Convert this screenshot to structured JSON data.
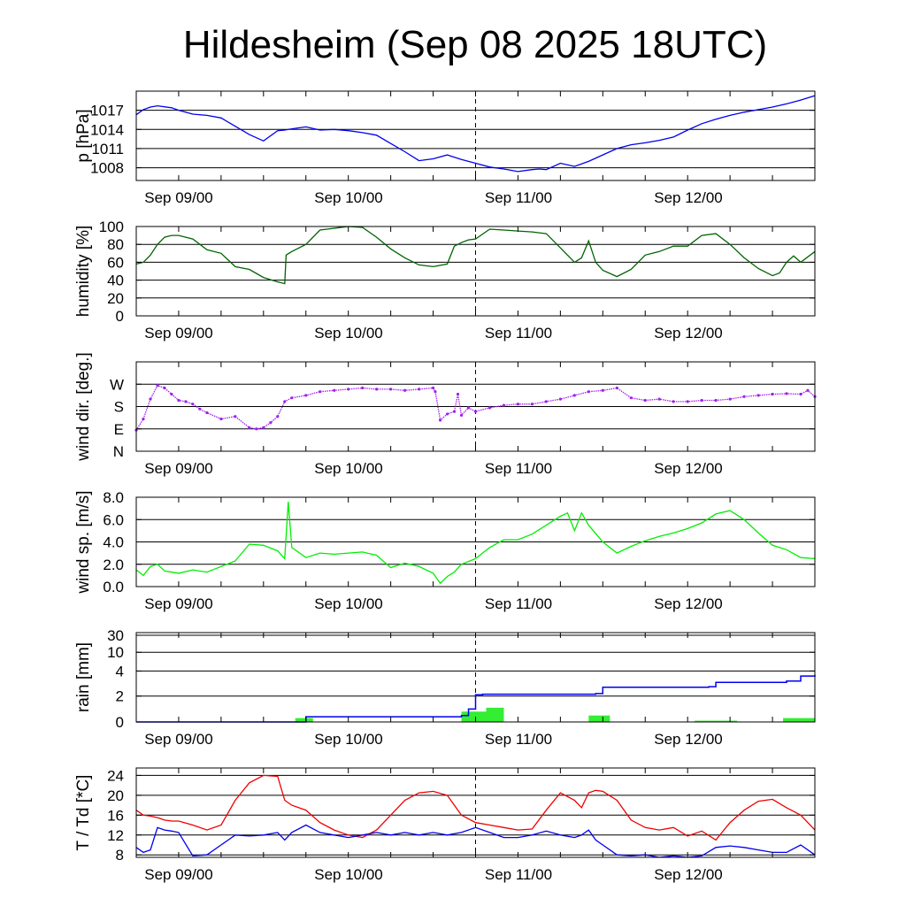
{
  "title": "Hildesheim (Sep 08 2025 18UTC)",
  "chart_data": [
    {
      "type": "line",
      "ylabel": "p [hPa]",
      "y_ticks": [
        "1008",
        "1011",
        "1014",
        "1017"
      ],
      "y_tick_values": [
        1008,
        1011,
        1014,
        1017
      ],
      "ylim": [
        1006,
        1020
      ],
      "x_ticks": [
        "Sep 09/00",
        "Sep 10/00",
        "Sep 11/00",
        "Sep 12/00"
      ],
      "xlim_hours": [
        0,
        96
      ],
      "x_hours": [
        0,
        1,
        2,
        3,
        5,
        6,
        8,
        10,
        12,
        14,
        16,
        18,
        20,
        21,
        22,
        24,
        26,
        28,
        30,
        32,
        34,
        36,
        38,
        40,
        42,
        44,
        46,
        48,
        50,
        52,
        54,
        56,
        57,
        58,
        60,
        62,
        64,
        66,
        68,
        70,
        72,
        74,
        76,
        78,
        80,
        82,
        84,
        86,
        88,
        90,
        92,
        94,
        96
      ],
      "series": [
        {
          "color": "#0000ee",
          "values": [
            1016.3,
            1017.1,
            1017.5,
            1017.7,
            1017.4,
            1017.0,
            1016.4,
            1016.2,
            1015.8,
            1014.5,
            1013.2,
            1012.2,
            1013.8,
            1013.9,
            1014.1,
            1014.4,
            1013.9,
            1014.0,
            1013.8,
            1013.5,
            1013.1,
            1011.8,
            1010.5,
            1009.1,
            1009.4,
            1010.0,
            1009.3,
            1008.7,
            1008.1,
            1007.8,
            1007.4,
            1007.7,
            1007.8,
            1007.7,
            1008.7,
            1008.2,
            1009.0,
            1010.0,
            1011.0,
            1011.6,
            1011.9,
            1012.3,
            1012.8,
            1013.9,
            1014.9,
            1015.6,
            1016.2,
            1016.7,
            1017.1,
            1017.5,
            1018.0,
            1018.6,
            1019.3
          ]
        }
      ]
    },
    {
      "type": "line",
      "ylabel": "humidity [%]",
      "y_ticks": [
        "0",
        "20",
        "40",
        "60",
        "80",
        "100"
      ],
      "y_tick_values": [
        0,
        20,
        40,
        60,
        80,
        100
      ],
      "ylim": [
        0,
        100
      ],
      "x_ticks": [
        "Sep 09/00",
        "Sep 10/00",
        "Sep 11/00",
        "Sep 12/00"
      ],
      "xlim_hours": [
        0,
        96
      ],
      "x_hours": [
        0,
        1,
        2,
        3,
        4,
        5,
        6,
        8,
        10,
        12,
        14,
        16,
        18,
        20,
        21,
        21.2,
        22,
        24,
        26,
        28,
        30,
        32,
        34,
        36,
        38,
        40,
        42,
        44,
        45,
        46,
        47,
        48,
        50,
        52,
        54,
        56,
        58,
        60,
        62,
        63,
        64,
        65,
        66,
        68,
        70,
        72,
        74,
        76,
        78,
        80,
        82,
        84,
        86,
        88,
        90,
        91,
        92,
        93,
        94,
        96
      ],
      "series": [
        {
          "color": "#006400",
          "values": [
            58,
            60,
            68,
            80,
            88,
            90,
            90,
            86,
            74,
            70,
            55,
            52,
            43,
            38,
            36,
            68,
            72,
            80,
            96,
            98,
            100,
            99,
            88,
            75,
            65,
            57,
            55,
            58,
            78,
            82,
            85,
            86,
            97,
            96,
            95,
            94,
            92,
            76,
            60,
            65,
            84,
            60,
            51,
            44,
            52,
            68,
            72,
            78,
            78,
            90,
            92,
            80,
            65,
            53,
            45,
            48,
            60,
            67,
            60,
            72
          ]
        }
      ]
    },
    {
      "type": "scatter",
      "ylabel": "wind dir. [deg.]",
      "y_ticks": [
        "N",
        "E",
        "S",
        "W"
      ],
      "y_tick_values": [
        0,
        90,
        180,
        270
      ],
      "ylim": [
        0,
        360
      ],
      "x_ticks": [
        "Sep 09/00",
        "Sep 10/00",
        "Sep 11/00",
        "Sep 12/00"
      ],
      "xlim_hours": [
        0,
        96
      ],
      "x_hours": [
        0,
        1,
        2,
        3,
        4,
        5,
        6,
        7,
        8,
        9,
        10,
        12,
        14,
        16,
        17,
        18,
        19,
        20,
        21,
        22,
        24,
        26,
        28,
        30,
        32,
        34,
        36,
        38,
        40,
        42,
        42.3,
        43,
        44,
        45,
        45.5,
        46,
        47,
        48,
        50,
        52,
        54,
        56,
        58,
        60,
        62,
        64,
        66,
        68,
        70,
        72,
        74,
        76,
        78,
        80,
        82,
        84,
        86,
        88,
        90,
        92,
        94,
        95,
        96
      ],
      "series": [
        {
          "color": "#a020f0",
          "values": [
            85,
            130,
            210,
            265,
            255,
            230,
            205,
            200,
            190,
            170,
            155,
            130,
            140,
            95,
            90,
            95,
            115,
            140,
            200,
            215,
            225,
            240,
            245,
            250,
            255,
            250,
            250,
            245,
            250,
            255,
            240,
            125,
            150,
            160,
            230,
            145,
            175,
            160,
            175,
            185,
            190,
            190,
            200,
            210,
            225,
            240,
            245,
            255,
            215,
            205,
            210,
            200,
            200,
            205,
            205,
            210,
            220,
            225,
            230,
            232,
            230,
            245,
            220
          ]
        }
      ]
    },
    {
      "type": "line",
      "ylabel": "wind sp. [m/s]",
      "y_ticks": [
        "0.0",
        "2.0",
        "4.0",
        "6.0",
        "8.0"
      ],
      "y_tick_values": [
        0,
        2,
        4,
        6,
        8
      ],
      "ylim": [
        0,
        8
      ],
      "x_ticks": [
        "Sep 09/00",
        "Sep 10/00",
        "Sep 11/00",
        "Sep 12/00"
      ],
      "xlim_hours": [
        0,
        96
      ],
      "x_hours": [
        0,
        1,
        2,
        3,
        4,
        6,
        8,
        10,
        12,
        14,
        16,
        18,
        20,
        21,
        21.5,
        22,
        24,
        26,
        28,
        30,
        32,
        34,
        36,
        38,
        40,
        42,
        43,
        44,
        45,
        46,
        48,
        50,
        52,
        54,
        56,
        58,
        60,
        61,
        62,
        63,
        64,
        66,
        68,
        70,
        72,
        74,
        76,
        78,
        80,
        82,
        84,
        86,
        88,
        90,
        92,
        94,
        96
      ],
      "series": [
        {
          "color": "#00ee00",
          "values": [
            1.5,
            1.0,
            1.8,
            2.0,
            1.4,
            1.2,
            1.5,
            1.3,
            1.8,
            2.3,
            3.8,
            3.7,
            3.2,
            2.5,
            7.6,
            3.5,
            2.6,
            3.0,
            2.9,
            3.0,
            3.1,
            2.8,
            1.7,
            2.1,
            1.8,
            1.2,
            0.3,
            0.9,
            1.3,
            2.0,
            2.5,
            3.5,
            4.2,
            4.2,
            4.7,
            5.5,
            6.3,
            6.6,
            5.0,
            6.6,
            5.5,
            4.0,
            3.0,
            3.6,
            4.1,
            4.5,
            4.8,
            5.2,
            5.7,
            6.5,
            6.8,
            6.0,
            4.8,
            3.7,
            3.3,
            2.6,
            2.5
          ]
        }
      ]
    },
    {
      "type": "bar",
      "ylabel": "rain [mm]",
      "y_ticks": [
        "0",
        "2",
        "4",
        "10",
        "30"
      ],
      "y_tick_values": [
        0,
        2,
        4,
        10,
        30
      ],
      "ylim": [
        0,
        30
      ],
      "x_ticks": [
        "Sep 09/00",
        "Sep 10/00",
        "Sep 11/00",
        "Sep 12/00"
      ],
      "xlim_hours": [
        0,
        96
      ],
      "bars": [
        {
          "start": 22.5,
          "end": 25,
          "value": 0.3
        },
        {
          "start": 46,
          "end": 49.5,
          "value": 0.8
        },
        {
          "start": 49.5,
          "end": 52,
          "value": 1.1
        },
        {
          "start": 64,
          "end": 67,
          "value": 0.5
        },
        {
          "start": 79,
          "end": 85,
          "value": 0.1
        },
        {
          "start": 91.5,
          "end": 96,
          "value": 0.3
        }
      ],
      "series": [
        {
          "color": "#0000ee",
          "x_hours": [
            0,
            22,
            24,
            46,
            47,
            48,
            49,
            65,
            66,
            81,
            82,
            92,
            94,
            96
          ],
          "values": [
            0,
            0,
            0.4,
            0.5,
            1.0,
            2.1,
            2.15,
            2.2,
            2.7,
            2.75,
            3.1,
            3.2,
            3.6,
            3.7
          ]
        }
      ]
    },
    {
      "type": "line",
      "ylabel": "T / Td [*C]",
      "y_ticks": [
        "8",
        "12",
        "16",
        "20",
        "24"
      ],
      "y_tick_values": [
        8,
        12,
        16,
        20,
        24
      ],
      "ylim": [
        7.5,
        25.5
      ],
      "x_ticks": [
        "Sep 09/00",
        "Sep 10/00",
        "Sep 11/00",
        "Sep 12/00"
      ],
      "xlim_hours": [
        0,
        96
      ],
      "x_hours": [
        0,
        1,
        2,
        3,
        4,
        5,
        6,
        8,
        10,
        12,
        14,
        16,
        18,
        20,
        21,
        22,
        24,
        26,
        28,
        30,
        32,
        34,
        36,
        38,
        40,
        42,
        44,
        46,
        48,
        50,
        52,
        54,
        56,
        58,
        60,
        62,
        63,
        64,
        65,
        66,
        68,
        70,
        72,
        74,
        76,
        78,
        80,
        82,
        84,
        86,
        88,
        90,
        92,
        94,
        96
      ],
      "series": [
        {
          "name": "T",
          "color": "#ee0000",
          "values": [
            17.0,
            16.0,
            15.8,
            15.5,
            15.0,
            14.8,
            14.8,
            14.0,
            13.0,
            14.0,
            19.0,
            22.5,
            24.0,
            23.8,
            19.0,
            18.0,
            17.0,
            14.5,
            13.0,
            12.0,
            11.5,
            13.0,
            16.0,
            19.0,
            20.5,
            20.8,
            20.0,
            16.0,
            14.5,
            14.0,
            13.5,
            13.0,
            13.2,
            17.0,
            20.5,
            19.0,
            17.5,
            20.5,
            21.0,
            20.8,
            19.0,
            15.0,
            13.5,
            13.0,
            13.5,
            11.8,
            12.8,
            11.0,
            14.5,
            17.0,
            18.8,
            19.2,
            17.5,
            16.0,
            13.0
          ]
        },
        {
          "name": "Td",
          "color": "#0000ee",
          "values": [
            9.5,
            8.5,
            9.0,
            13.5,
            13.0,
            12.8,
            12.5,
            7.8,
            8.0,
            10.0,
            12.0,
            11.8,
            12.0,
            12.5,
            11.0,
            12.5,
            14.0,
            12.5,
            12.0,
            11.5,
            12.0,
            12.5,
            12.0,
            12.5,
            12.0,
            12.5,
            12.0,
            12.5,
            13.5,
            12.5,
            11.5,
            11.5,
            12.0,
            12.8,
            12.0,
            11.5,
            12.0,
            13.0,
            11.0,
            10.0,
            8.0,
            7.8,
            8.0,
            7.5,
            7.8,
            7.5,
            7.8,
            9.5,
            9.8,
            9.5,
            9.0,
            8.5,
            8.5,
            10.0,
            8.0
          ]
        }
      ]
    }
  ]
}
